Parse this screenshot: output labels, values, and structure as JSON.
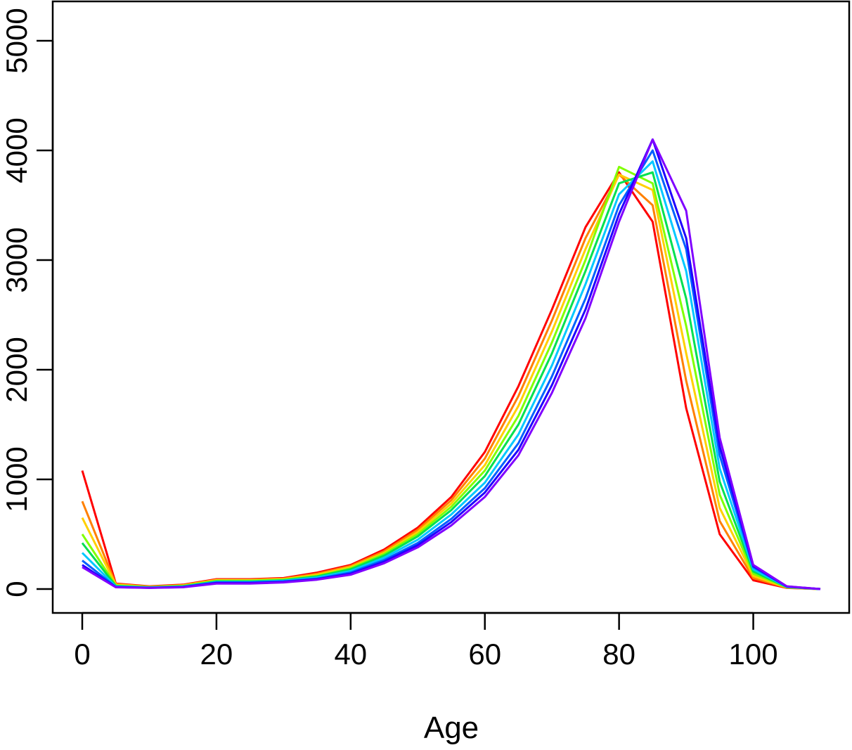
{
  "chart_data": {
    "type": "line",
    "title": "",
    "xlabel": "Age",
    "ylabel": "",
    "xlim": [
      0,
      110
    ],
    "ylim": [
      0,
      5000
    ],
    "grid": false,
    "x_ticks": [
      0,
      20,
      40,
      60,
      80,
      100
    ],
    "x_tick_labels": [
      "0",
      "20",
      "40",
      "60",
      "80",
      "100"
    ],
    "y_ticks": [
      0,
      1000,
      2000,
      3000,
      4000,
      5000
    ],
    "y_tick_labels": [
      "0",
      "1000",
      "2000",
      "3000",
      "4000",
      "5000"
    ],
    "palette": "rainbow (red to violet)",
    "colors": [
      "#ff0000",
      "#ff8000",
      "#ffd000",
      "#80ff00",
      "#00e050",
      "#00c8ff",
      "#0060ff",
      "#2000ff",
      "#8000ff"
    ],
    "x": [
      0,
      5,
      10,
      15,
      20,
      25,
      30,
      35,
      40,
      45,
      50,
      55,
      60,
      65,
      70,
      75,
      80,
      85,
      90,
      95,
      100,
      105,
      110
    ],
    "series": [
      {
        "name": "red",
        "color": "#ff0000",
        "values": [
          1080,
          50,
          25,
          40,
          90,
          90,
          100,
          150,
          220,
          360,
          560,
          840,
          1250,
          1850,
          2550,
          3300,
          3800,
          3350,
          1650,
          500,
          80,
          10,
          0
        ]
      },
      {
        "name": "orange",
        "color": "#ff8000",
        "values": [
          800,
          45,
          22,
          35,
          85,
          85,
          95,
          140,
          210,
          345,
          540,
          810,
          1190,
          1760,
          2450,
          3200,
          3780,
          3500,
          1900,
          620,
          100,
          12,
          0
        ]
      },
      {
        "name": "yellow",
        "color": "#ffd000",
        "values": [
          650,
          40,
          20,
          32,
          80,
          80,
          90,
          130,
          200,
          330,
          520,
          780,
          1130,
          1670,
          2350,
          3100,
          3780,
          3640,
          2150,
          740,
          120,
          14,
          0
        ]
      },
      {
        "name": "yellow-green",
        "color": "#80ff00",
        "values": [
          500,
          32,
          18,
          28,
          75,
          75,
          85,
          120,
          190,
          320,
          500,
          750,
          1080,
          1580,
          2250,
          3000,
          3850,
          3700,
          2400,
          860,
          140,
          16,
          0
        ]
      },
      {
        "name": "green",
        "color": "#00e050",
        "values": [
          420,
          28,
          16,
          25,
          70,
          70,
          80,
          115,
          180,
          305,
          480,
          720,
          1030,
          1500,
          2150,
          2900,
          3700,
          3800,
          2650,
          980,
          160,
          18,
          0
        ]
      },
      {
        "name": "cyan",
        "color": "#00c8ff",
        "values": [
          330,
          24,
          14,
          22,
          65,
          65,
          75,
          105,
          165,
          285,
          450,
          680,
          970,
          1410,
          2040,
          2780,
          3600,
          3900,
          2900,
          1100,
          180,
          20,
          0
        ]
      },
      {
        "name": "blue",
        "color": "#0060ff",
        "values": [
          260,
          20,
          12,
          20,
          60,
          60,
          70,
          95,
          150,
          265,
          420,
          640,
          920,
          1330,
          1940,
          2650,
          3500,
          4000,
          3100,
          1220,
          200,
          22,
          0
        ]
      },
      {
        "name": "indigo",
        "color": "#2000ff",
        "values": [
          220,
          18,
          11,
          18,
          55,
          55,
          65,
          90,
          140,
          250,
          400,
          610,
          880,
          1270,
          1860,
          2550,
          3420,
          4100,
          3200,
          1300,
          210,
          24,
          0
        ]
      },
      {
        "name": "violet",
        "color": "#8000ff",
        "values": [
          200,
          16,
          10,
          16,
          50,
          50,
          60,
          85,
          130,
          235,
          380,
          580,
          840,
          1220,
          1790,
          2470,
          3350,
          4100,
          3450,
          1380,
          220,
          25,
          0
        ]
      }
    ]
  }
}
